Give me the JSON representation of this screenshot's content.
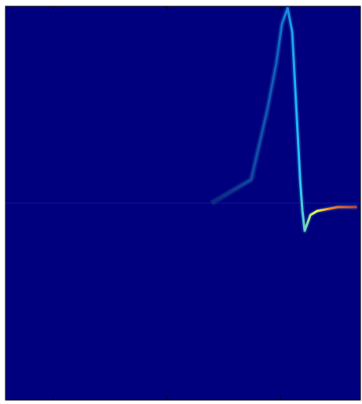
{
  "chart_data": {
    "type": "line",
    "x": [
      2.39,
      2.74,
      2.88,
      2.96,
      3.01,
      3.06,
      3.1,
      3.14,
      3.17,
      3.19,
      3.21,
      3.26,
      3.32,
      3.5,
      3.67
    ],
    "values": [
      0,
      0.12,
      0.47,
      0.71,
      0.91,
      0.99,
      0.87,
      0.44,
      0.12,
      -0.04,
      -0.14,
      -0.06,
      -0.04,
      -0.02,
      -0.02
    ],
    "color": "#ffff00",
    "background": "#00007f",
    "xlim": [
      0.58,
      3.7
    ],
    "xticks": [
      1,
      2,
      3
    ],
    "ylim": [
      -1,
      1
    ],
    "yticks": [
      0
    ]
  }
}
